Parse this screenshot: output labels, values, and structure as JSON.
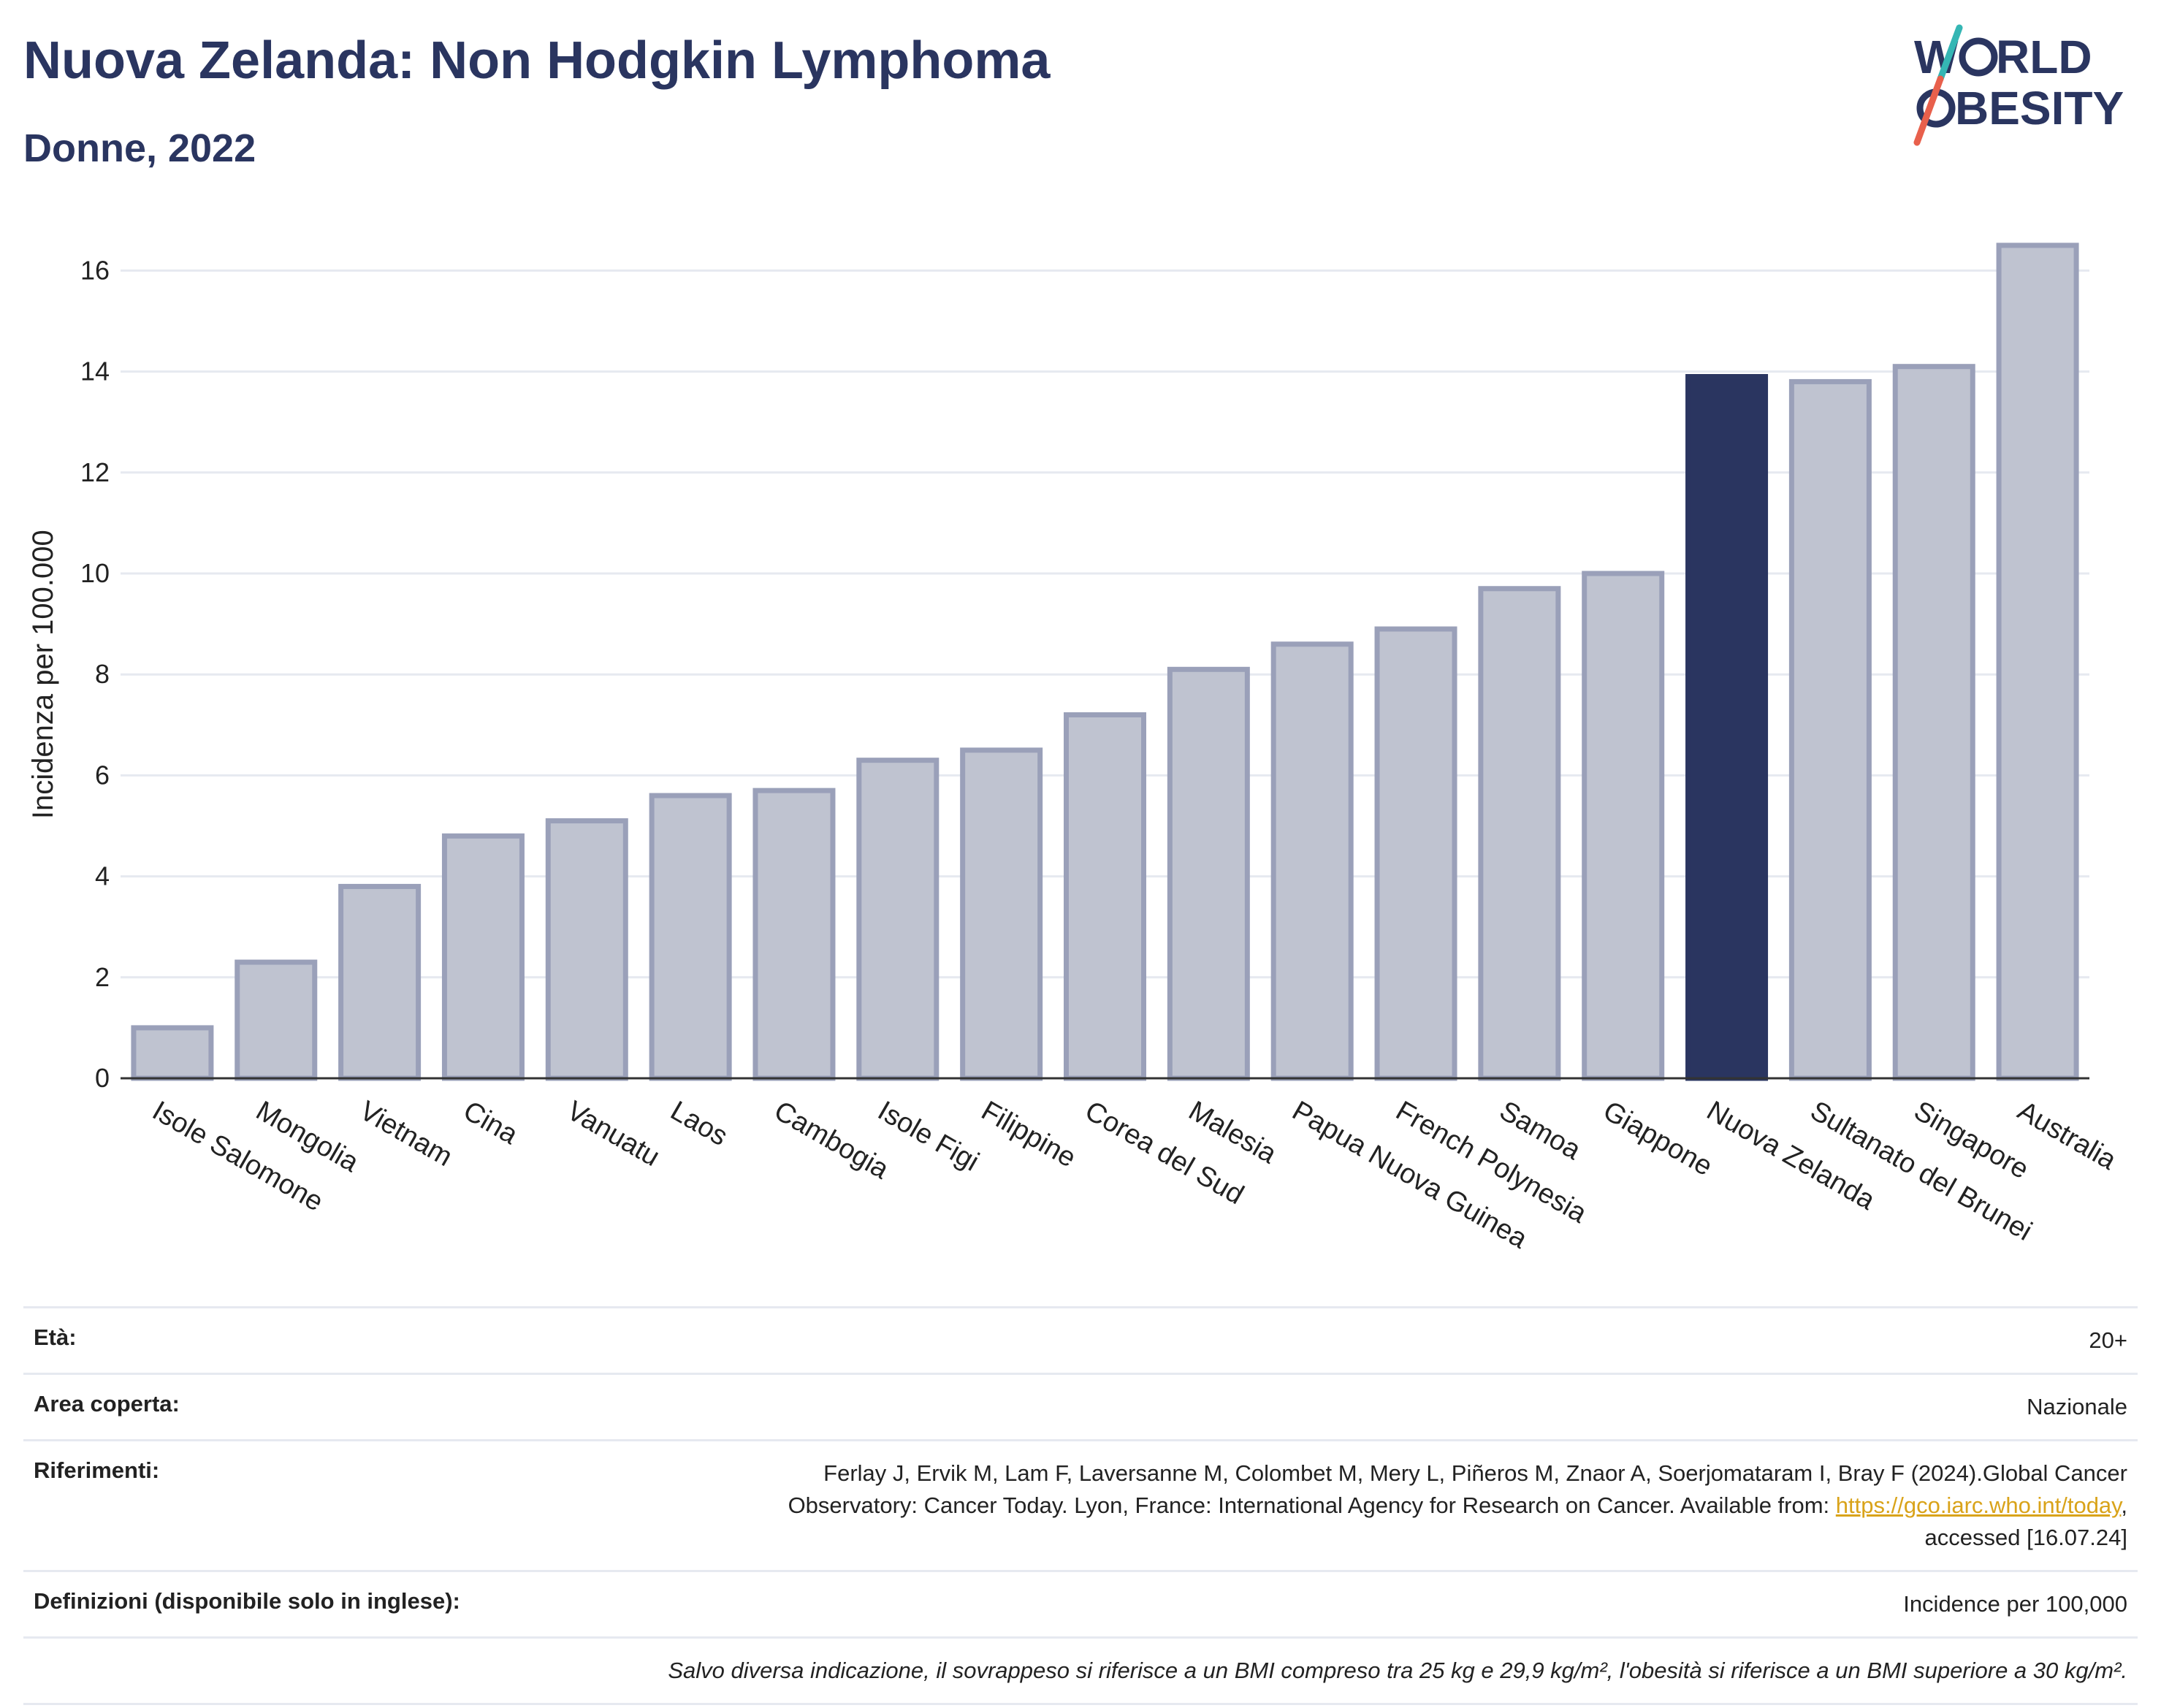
{
  "header": {
    "title": "Nuova Zelanda: Non Hodgkin Lymphoma",
    "subtitle": "Donne, 2022"
  },
  "logo": {
    "line1": "W",
    "line1b": "RLD",
    "line2b": "BESITY",
    "colors": {
      "text": "#2a3560",
      "slash_teal": "#35b6b4",
      "slash_red": "#e8604c"
    }
  },
  "colors": {
    "bar": "#bfc3d0",
    "bar_border": "#9aa0b9",
    "highlight": "#2a3560",
    "grid": "#e6e9f0"
  },
  "chart_data": {
    "type": "bar",
    "title": "Nuova Zelanda: Non Hodgkin Lymphoma",
    "subtitle": "Donne, 2022",
    "xlabel": "",
    "ylabel": "Incidenza per 100.000",
    "ylim": [
      0,
      17
    ],
    "yticks": [
      0,
      2,
      4,
      6,
      8,
      10,
      12,
      14,
      16
    ],
    "grid": true,
    "highlight": "Nuova Zelanda",
    "categories": [
      "Isole Salomone",
      "Mongolia",
      "Vietnam",
      "Cina",
      "Vanuatu",
      "Laos",
      "Cambogia",
      "Isole Figi",
      "Filippine",
      "Corea del Sud",
      "Malesia",
      "Papua Nuova Guinea",
      "French Polynesia",
      "Samoa",
      "Giappone",
      "Nuova Zelanda",
      "Sultanato del Brunei",
      "Singapore",
      "Australia"
    ],
    "values": [
      1.0,
      2.3,
      3.8,
      4.8,
      5.1,
      5.6,
      5.7,
      6.3,
      6.5,
      7.2,
      8.1,
      8.6,
      8.9,
      9.7,
      10.0,
      13.9,
      13.8,
      14.1,
      16.5
    ]
  },
  "info": {
    "age_label": "Età:",
    "age_value": "20+",
    "area_label": "Area coperta:",
    "area_value": "Nazionale",
    "ref_label": "Riferimenti:",
    "ref_text1": "Ferlay J, Ervik M, Lam F, Laversanne M, Colombet M, Mery L, Piñeros M, Znaor A, Soerjomataram I, Bray F (2024).Global Cancer Observatory: Cancer Today. Lyon, France: International Agency for Research on Cancer. Available from: ",
    "ref_link": "https://gco.iarc.who.int/today",
    "ref_text2": ", accessed [16.07.24]",
    "def_label": "Definizioni (disponibile solo in inglese):",
    "def_value": "Incidence per 100,000",
    "note": "Salvo diversa indicazione, il sovrappeso si riferisce a un BMI compreso tra 25 kg e 29,9 kg/m², l'obesità si riferisce a un BMI superiore a 30 kg/m²."
  }
}
